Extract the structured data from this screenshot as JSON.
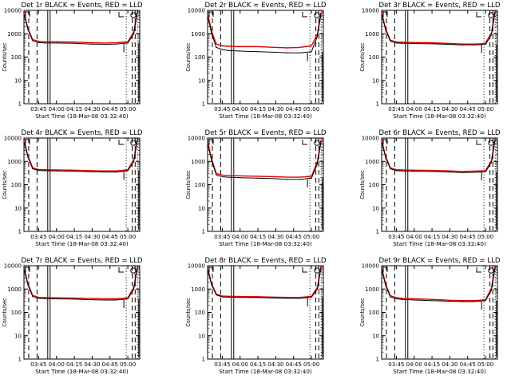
{
  "colors": {
    "events": "#000000",
    "lld": "#e00000",
    "background": "#ffffff"
  },
  "axes": {
    "ylabel": "Counts/sec",
    "y_ticks": [
      "1",
      "10",
      "100",
      "1000",
      "10000"
    ],
    "y_scale": "log",
    "ylim": [
      1,
      10000
    ],
    "x_ticks": [
      "03:45",
      "04:00",
      "04:15",
      "04:30",
      "04:45",
      "05:00"
    ],
    "xlabel": "Start Time (18-Mar-08 03:32:40)"
  },
  "chart_data": [
    {
      "type": "line",
      "title": "Det 1r BLACK = Events, RED = LLD",
      "series": [
        {
          "name": "Events",
          "x": [
            "03:33",
            "03:36",
            "03:40",
            "03:45",
            "03:50",
            "04:00",
            "04:15",
            "04:30",
            "04:40",
            "04:50",
            "04:55",
            "05:00",
            "05:05",
            "05:08"
          ],
          "values": [
            6000,
            1500,
            500,
            420,
            400,
            400,
            390,
            360,
            350,
            360,
            380,
            400,
            1000,
            8000
          ]
        },
        {
          "name": "LLD",
          "x": [
            "03:33",
            "03:36",
            "03:40",
            "03:45",
            "03:50",
            "04:00",
            "04:15",
            "04:30",
            "04:40",
            "04:50",
            "04:55",
            "05:00",
            "05:05",
            "05:08"
          ],
          "values": [
            7000,
            1700,
            560,
            470,
            450,
            450,
            440,
            410,
            400,
            410,
            430,
            450,
            1200,
            9000
          ]
        }
      ]
    },
    {
      "type": "line",
      "title": "Det 2r BLACK = Events, RED = LLD",
      "series": [
        {
          "name": "Events",
          "x": [
            "03:33",
            "03:36",
            "03:40",
            "03:45",
            "03:50",
            "04:00",
            "04:15",
            "04:30",
            "04:40",
            "04:50",
            "04:55",
            "05:00",
            "05:05",
            "05:08"
          ],
          "values": [
            5000,
            1000,
            260,
            210,
            190,
            180,
            170,
            160,
            150,
            150,
            160,
            170,
            800,
            7000
          ]
        },
        {
          "name": "LLD",
          "x": [
            "03:33",
            "03:36",
            "03:40",
            "03:45",
            "03:50",
            "04:00",
            "04:15",
            "04:30",
            "04:40",
            "04:50",
            "04:55",
            "05:00",
            "05:05",
            "05:08"
          ],
          "values": [
            6000,
            1300,
            360,
            300,
            290,
            280,
            280,
            260,
            250,
            260,
            280,
            300,
            1000,
            8000
          ]
        }
      ]
    },
    {
      "type": "line",
      "title": "Det 3r BLACK = Events, RED = LLD",
      "series": [
        {
          "name": "Events",
          "x": [
            "03:33",
            "03:36",
            "03:40",
            "03:45",
            "03:50",
            "04:00",
            "04:15",
            "04:30",
            "04:40",
            "04:50",
            "04:55",
            "05:00",
            "05:05",
            "05:08"
          ],
          "values": [
            6000,
            1400,
            480,
            400,
            390,
            380,
            370,
            350,
            330,
            330,
            340,
            350,
            900,
            8000
          ]
        },
        {
          "name": "LLD",
          "x": [
            "03:33",
            "03:36",
            "03:40",
            "03:45",
            "03:50",
            "04:00",
            "04:15",
            "04:30",
            "04:40",
            "04:50",
            "04:55",
            "05:00",
            "05:05",
            "05:08"
          ],
          "values": [
            7000,
            1600,
            530,
            440,
            430,
            420,
            410,
            380,
            360,
            360,
            370,
            390,
            1100,
            9000
          ]
        }
      ]
    },
    {
      "type": "line",
      "title": "Det 4r BLACK = Events, RED = LLD",
      "series": [
        {
          "name": "Events",
          "x": [
            "03:33",
            "03:36",
            "03:40",
            "03:45",
            "03:50",
            "04:00",
            "04:15",
            "04:30",
            "04:40",
            "04:50",
            "04:55",
            "05:00",
            "05:05",
            "05:08"
          ],
          "values": [
            6000,
            1500,
            480,
            410,
            400,
            390,
            380,
            360,
            350,
            350,
            370,
            400,
            1000,
            8000
          ]
        },
        {
          "name": "LLD",
          "x": [
            "03:33",
            "03:36",
            "03:40",
            "03:45",
            "03:50",
            "04:00",
            "04:15",
            "04:30",
            "04:40",
            "04:50",
            "04:55",
            "05:00",
            "05:05",
            "05:08"
          ],
          "values": [
            7000,
            1700,
            530,
            450,
            440,
            430,
            420,
            400,
            390,
            390,
            410,
            440,
            1200,
            9000
          ]
        }
      ]
    },
    {
      "type": "line",
      "title": "Det 5r BLACK = Events, RED = LLD",
      "series": [
        {
          "name": "Events",
          "x": [
            "03:33",
            "03:36",
            "03:40",
            "03:45",
            "03:50",
            "04:00",
            "04:15",
            "04:30",
            "04:40",
            "04:50",
            "04:55",
            "05:00",
            "05:05",
            "05:08"
          ],
          "values": [
            5000,
            1100,
            260,
            220,
            210,
            200,
            190,
            180,
            170,
            170,
            180,
            190,
            800,
            7000
          ]
        },
        {
          "name": "LLD",
          "x": [
            "03:33",
            "03:36",
            "03:40",
            "03:45",
            "03:50",
            "04:00",
            "04:15",
            "04:30",
            "04:40",
            "04:50",
            "04:55",
            "05:00",
            "05:05",
            "05:08"
          ],
          "values": [
            6000,
            1300,
            300,
            260,
            250,
            240,
            230,
            220,
            210,
            210,
            220,
            230,
            1000,
            8000
          ]
        }
      ]
    },
    {
      "type": "line",
      "title": "Det 6r BLACK = Events, RED = LLD",
      "series": [
        {
          "name": "Events",
          "x": [
            "03:33",
            "03:36",
            "03:40",
            "03:45",
            "03:50",
            "04:00",
            "04:15",
            "04:30",
            "04:40",
            "04:50",
            "04:55",
            "05:00",
            "05:05",
            "05:08"
          ],
          "values": [
            6000,
            1400,
            480,
            400,
            390,
            380,
            370,
            350,
            330,
            340,
            350,
            360,
            900,
            8000
          ]
        },
        {
          "name": "LLD",
          "x": [
            "03:33",
            "03:36",
            "03:40",
            "03:45",
            "03:50",
            "04:00",
            "04:15",
            "04:30",
            "04:40",
            "04:50",
            "04:55",
            "05:00",
            "05:05",
            "05:08"
          ],
          "values": [
            7000,
            1600,
            530,
            440,
            430,
            420,
            410,
            390,
            370,
            380,
            390,
            400,
            1100,
            9000
          ]
        }
      ]
    },
    {
      "type": "line",
      "title": "Det 7r BLACK = Events, RED = LLD",
      "series": [
        {
          "name": "Events",
          "x": [
            "03:33",
            "03:36",
            "03:40",
            "03:45",
            "03:50",
            "04:00",
            "04:15",
            "04:30",
            "04:40",
            "04:50",
            "04:55",
            "05:00",
            "05:05",
            "05:08"
          ],
          "values": [
            6000,
            1500,
            480,
            400,
            390,
            380,
            370,
            350,
            340,
            340,
            360,
            380,
            1000,
            8000
          ]
        },
        {
          "name": "LLD",
          "x": [
            "03:33",
            "03:36",
            "03:40",
            "03:45",
            "03:50",
            "04:00",
            "04:15",
            "04:30",
            "04:40",
            "04:50",
            "04:55",
            "05:00",
            "05:05",
            "05:08"
          ],
          "values": [
            7000,
            1700,
            540,
            440,
            430,
            420,
            410,
            390,
            380,
            380,
            400,
            420,
            1200,
            9000
          ]
        }
      ]
    },
    {
      "type": "line",
      "title": "Det 8r BLACK = Events, RED = LLD",
      "series": [
        {
          "name": "Events",
          "x": [
            "03:33",
            "03:36",
            "03:40",
            "03:45",
            "03:50",
            "04:00",
            "04:15",
            "04:30",
            "04:40",
            "04:50",
            "04:55",
            "05:00",
            "05:05",
            "05:08"
          ],
          "values": [
            6000,
            1500,
            560,
            460,
            450,
            440,
            430,
            410,
            400,
            400,
            420,
            450,
            1000,
            8000
          ]
        },
        {
          "name": "LLD",
          "x": [
            "03:33",
            "03:36",
            "03:40",
            "03:45",
            "03:50",
            "04:00",
            "04:15",
            "04:30",
            "04:40",
            "04:50",
            "04:55",
            "05:00",
            "05:05",
            "05:08"
          ],
          "values": [
            7000,
            1700,
            610,
            500,
            490,
            480,
            470,
            450,
            440,
            440,
            460,
            490,
            1200,
            9000
          ]
        }
      ]
    },
    {
      "type": "line",
      "title": "Det 9r BLACK = Events, RED = LLD",
      "series": [
        {
          "name": "Events",
          "x": [
            "03:33",
            "03:36",
            "03:40",
            "03:45",
            "03:50",
            "04:00",
            "04:15",
            "04:30",
            "04:40",
            "04:50",
            "04:55",
            "05:00",
            "05:05",
            "05:08"
          ],
          "values": [
            6000,
            1400,
            460,
            380,
            360,
            340,
            320,
            300,
            290,
            290,
            300,
            320,
            900,
            8000
          ]
        },
        {
          "name": "LLD",
          "x": [
            "03:33",
            "03:36",
            "03:40",
            "03:45",
            "03:50",
            "04:00",
            "04:15",
            "04:30",
            "04:40",
            "04:50",
            "04:55",
            "05:00",
            "05:05",
            "05:08"
          ],
          "values": [
            7000,
            1600,
            520,
            430,
            400,
            380,
            360,
            330,
            320,
            320,
            330,
            350,
            1100,
            9000
          ]
        }
      ]
    }
  ]
}
